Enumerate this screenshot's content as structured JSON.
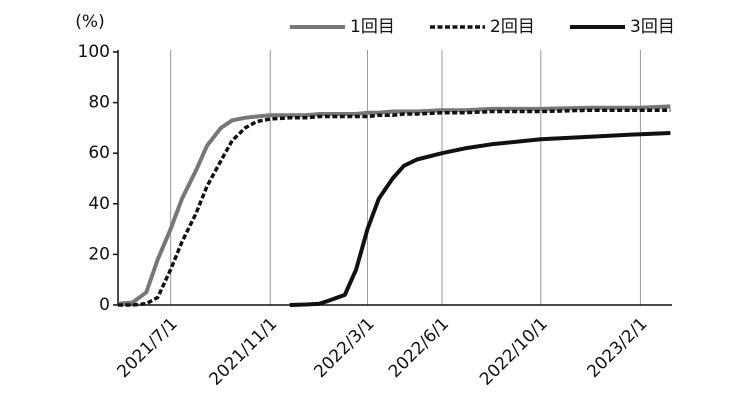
{
  "chart_data": {
    "type": "line",
    "y_label": "(%)",
    "x": [
      "2021/4/27",
      "2021/5/15",
      "2021/6/1",
      "2021/6/15",
      "2021/7/1",
      "2021/7/15",
      "2021/8/1",
      "2021/8/15",
      "2021/9/1",
      "2021/9/15",
      "2021/10/1",
      "2021/10/15",
      "2021/11/1",
      "2021/11/25",
      "2021/12/15",
      "2022/1/1",
      "2022/1/15",
      "2022/2/1",
      "2022/2/15",
      "2022/3/1",
      "2022/3/15",
      "2022/4/1",
      "2022/4/15",
      "2022/5/1",
      "2022/6/1",
      "2022/7/1",
      "2022/8/1",
      "2022/10/1",
      "2022/12/1",
      "2023/2/1",
      "2023/3/10"
    ],
    "series": [
      {
        "name": "1回目",
        "color": "#777777",
        "dash": false,
        "values": [
          0.5,
          1,
          5,
          18,
          30,
          42,
          53,
          63,
          70,
          73,
          74,
          74.5,
          75,
          75,
          75,
          75.5,
          75.5,
          75.5,
          75.5,
          76,
          76,
          76.5,
          76.5,
          76.5,
          77,
          77,
          77.5,
          77.5,
          78,
          78,
          78.5
        ]
      },
      {
        "name": "2回目",
        "color": "#111111",
        "dash": true,
        "values": [
          0,
          0,
          0.5,
          3,
          14,
          25,
          36,
          47,
          57,
          65,
          70,
          72.5,
          73.5,
          74,
          74,
          74.5,
          74.5,
          74.5,
          74.5,
          74.5,
          75,
          75,
          75.5,
          75.5,
          76,
          76,
          76.5,
          76.5,
          77,
          77,
          77
        ]
      },
      {
        "name": "3回目",
        "color": "#111111",
        "dash": false,
        "values": [
          null,
          null,
          null,
          null,
          null,
          null,
          null,
          null,
          null,
          null,
          null,
          null,
          null,
          0,
          0.2,
          0.5,
          2,
          4,
          14,
          30,
          42,
          50,
          55,
          57.5,
          60,
          62,
          63.5,
          65.5,
          66.5,
          67.5,
          68
        ]
      }
    ],
    "xlim": [
      "2021/4/27",
      "2023/3/12"
    ],
    "xticks": [
      "2021/7/1",
      "2021/11/1",
      "2022/3/1",
      "2022/6/1",
      "2022/10/1",
      "2023/2/1"
    ],
    "ylim": [
      0,
      100
    ],
    "yticks": [
      0,
      20,
      40,
      60,
      80,
      100
    ],
    "x_grid": true
  }
}
